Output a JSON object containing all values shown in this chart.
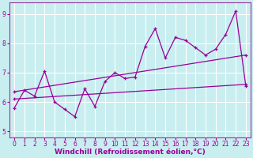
{
  "title": "",
  "xlabel": "Windchill (Refroidissement éolien,°C)",
  "bg_color": "#c8eef0",
  "grid_color": "#ffffff",
  "line_color": "#990099",
  "spine_color": "#993399",
  "xlim": [
    -0.5,
    23.5
  ],
  "ylim": [
    4.8,
    9.4
  ],
  "yticks": [
    5,
    6,
    7,
    8,
    9
  ],
  "xticks": [
    0,
    1,
    2,
    3,
    4,
    5,
    6,
    7,
    8,
    9,
    10,
    11,
    12,
    13,
    14,
    15,
    16,
    17,
    18,
    19,
    20,
    21,
    22,
    23
  ],
  "series1_x": [
    0,
    1,
    2,
    3,
    4,
    5,
    6,
    7,
    8,
    9,
    10,
    11,
    12,
    13,
    14,
    15,
    16,
    17,
    18,
    19,
    20,
    21,
    22,
    23
  ],
  "series1_y": [
    5.8,
    6.4,
    6.2,
    7.05,
    6.0,
    5.75,
    5.5,
    6.45,
    5.85,
    6.7,
    7.0,
    6.8,
    6.85,
    7.9,
    8.5,
    7.5,
    8.2,
    8.1,
    7.85,
    7.6,
    7.8,
    8.3,
    9.1,
    6.55
  ],
  "series2_x": [
    0,
    23
  ],
  "series2_y": [
    6.1,
    6.6
  ],
  "series3_x": [
    0,
    23
  ],
  "series3_y": [
    6.35,
    7.6
  ],
  "xlabel_fontsize": 6.5,
  "tick_fontsize": 5.5
}
